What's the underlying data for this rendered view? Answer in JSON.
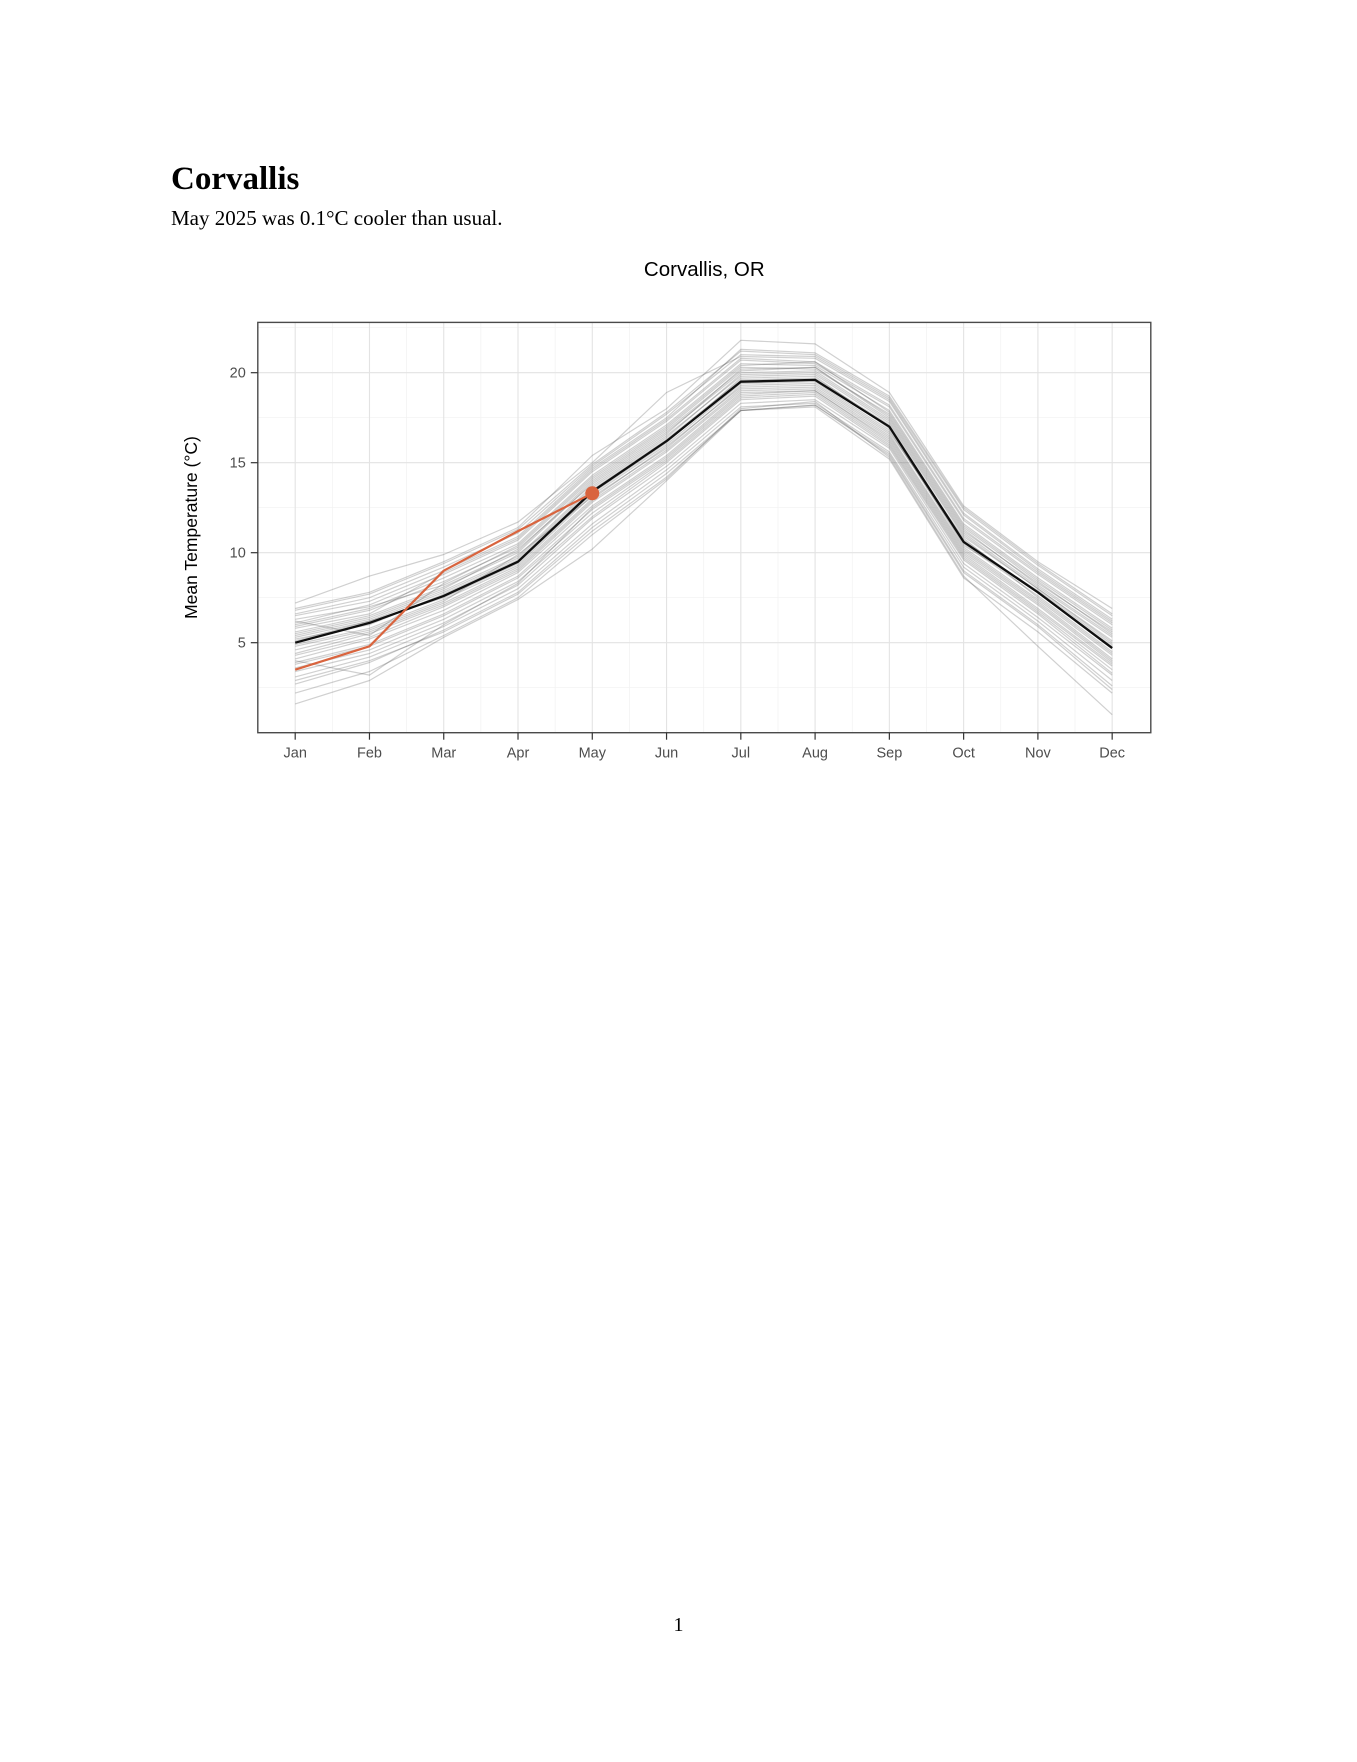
{
  "page": {
    "heading": "Corvallis",
    "subtitle": "May 2025 was 0.1°C cooler than usual.",
    "page_number": "1"
  },
  "chart": {
    "title": "Corvallis, OR",
    "y_axis_label": "Mean Temperature (°C)",
    "colors": {
      "current_year_line": "#D9643E",
      "current_year_point": "#D9643E",
      "mean_line": "#0f0f0f",
      "history_line": "#3c3c3c",
      "history_opacity": 0.24,
      "grid_major": "#e3e3e3",
      "grid_minor": "#f1f1f1",
      "panel_border": "#4a4a4a",
      "tick_mark": "#333333",
      "tick_label": "#4d4d4d",
      "title_text": "#000000"
    }
  },
  "chart_data": {
    "type": "line",
    "title": "Corvallis, OR",
    "xlabel": "",
    "ylabel": "Mean Temperature (°C)",
    "categories": [
      "Jan",
      "Feb",
      "Mar",
      "Apr",
      "May",
      "Jun",
      "Jul",
      "Aug",
      "Sep",
      "Oct",
      "Nov",
      "Dec"
    ],
    "y_ticks": [
      5,
      10,
      15,
      20
    ],
    "ylim": [
      0,
      22.8
    ],
    "grid": "on",
    "legend": "none",
    "series": [
      {
        "name": "historical-mean",
        "role": "mean",
        "values": [
          5.0,
          6.1,
          7.6,
          9.5,
          13.4,
          16.2,
          19.5,
          19.6,
          17.0,
          10.6,
          7.8,
          4.7
        ]
      },
      {
        "name": "2025",
        "role": "current",
        "note": "ends at May with a point marker",
        "values": [
          3.5,
          4.8,
          9.0,
          11.2,
          13.3
        ]
      }
    ],
    "history_years": [
      [
        6.3,
        7.0,
        8.2,
        10.1,
        14.0,
        16.8,
        20.1,
        20.3,
        17.5,
        11.2,
        8.3,
        5.6
      ],
      [
        4.1,
        5.2,
        6.8,
        8.9,
        12.6,
        15.4,
        18.9,
        19.0,
        16.3,
        10.0,
        7.1,
        3.9
      ],
      [
        5.8,
        6.6,
        8.9,
        10.8,
        14.6,
        17.4,
        20.8,
        20.6,
        18.2,
        11.9,
        8.9,
        6.1
      ],
      [
        3.4,
        4.4,
        6.1,
        8.2,
        11.9,
        14.8,
        18.3,
        18.5,
        15.8,
        9.4,
        6.4,
        3.2
      ],
      [
        6.8,
        7.7,
        9.4,
        11.3,
        14.9,
        17.8,
        21.2,
        21.0,
        18.6,
        12.4,
        9.3,
        6.5
      ],
      [
        2.7,
        3.9,
        5.7,
        7.8,
        11.4,
        14.4,
        17.9,
        18.2,
        15.5,
        9.0,
        6.0,
        2.6
      ],
      [
        5.4,
        6.3,
        7.9,
        9.8,
        13.7,
        16.5,
        19.8,
        19.9,
        17.2,
        10.9,
        8.0,
        5.0
      ],
      [
        4.6,
        5.6,
        7.2,
        9.2,
        13.0,
        15.9,
        19.2,
        19.3,
        16.6,
        10.3,
        7.4,
        4.3
      ],
      [
        6.0,
        6.9,
        8.6,
        10.5,
        14.3,
        17.1,
        20.5,
        20.4,
        17.9,
        11.6,
        8.6,
        5.8
      ],
      [
        3.8,
        4.8,
        6.5,
        8.6,
        12.2,
        15.1,
        18.6,
        18.8,
        16.0,
        9.7,
        6.7,
        3.5
      ],
      [
        5.2,
        6.0,
        7.7,
        9.6,
        13.5,
        16.3,
        19.6,
        19.7,
        17.1,
        10.7,
        7.8,
        4.8
      ],
      [
        7.2,
        8.7,
        9.9,
        11.7,
        15.0,
        18.9,
        20.9,
        20.8,
        18.4,
        12.1,
        9.0,
        6.2
      ],
      [
        1.6,
        2.9,
        5.3,
        7.4,
        10.2,
        14.0,
        17.9,
        18.1,
        15.2,
        8.6,
        5.6,
        2.2
      ],
      [
        4.9,
        5.8,
        7.4,
        9.3,
        13.2,
        16.0,
        19.4,
        19.5,
        16.8,
        10.5,
        7.6,
        4.5
      ],
      [
        5.6,
        6.5,
        8.1,
        10.0,
        13.9,
        16.7,
        20.0,
        20.1,
        17.4,
        11.1,
        8.1,
        5.3
      ],
      [
        4.3,
        5.3,
        7.0,
        9.0,
        12.8,
        15.6,
        19.0,
        19.1,
        16.4,
        10.1,
        7.2,
        4.0
      ],
      [
        6.5,
        7.3,
        9.0,
        10.9,
        14.7,
        17.5,
        21.3,
        21.1,
        18.7,
        12.5,
        9.4,
        6.6
      ],
      [
        3.1,
        4.2,
        5.9,
        8.0,
        11.6,
        14.6,
        18.1,
        18.3,
        15.6,
        9.2,
        6.2,
        2.9
      ],
      [
        5.1,
        6.2,
        7.5,
        9.4,
        13.3,
        16.1,
        19.7,
        19.8,
        16.9,
        10.4,
        7.9,
        4.9
      ],
      [
        6.1,
        7.1,
        8.8,
        10.7,
        14.5,
        17.3,
        20.7,
        20.5,
        18.1,
        11.8,
        8.8,
        6.0
      ],
      [
        3.6,
        4.6,
        6.3,
        8.4,
        12.0,
        15.0,
        18.5,
        18.7,
        15.9,
        9.6,
        6.6,
        3.3
      ],
      [
        5.9,
        6.8,
        8.4,
        10.3,
        14.1,
        16.9,
        20.3,
        20.2,
        17.7,
        11.4,
        8.4,
        5.5
      ],
      [
        4.4,
        5.5,
        7.1,
        9.1,
        12.9,
        15.7,
        19.1,
        19.2,
        16.5,
        10.2,
        7.3,
        4.1
      ],
      [
        6.6,
        7.5,
        9.2,
        11.1,
        14.8,
        17.7,
        21.0,
        20.9,
        18.5,
        12.2,
        9.1,
        6.3
      ],
      [
        2.9,
        4.0,
        5.6,
        7.7,
        11.2,
        14.2,
        17.9,
        18.2,
        15.4,
        8.9,
        5.9,
        2.4
      ],
      [
        5.3,
        6.2,
        7.8,
        9.7,
        13.6,
        16.4,
        19.9,
        20.0,
        17.3,
        11.0,
        8.0,
        5.1
      ],
      [
        4.8,
        5.7,
        7.3,
        9.9,
        13.1,
        15.8,
        19.3,
        19.4,
        16.7,
        10.8,
        7.5,
        4.4
      ],
      [
        6.9,
        7.8,
        9.5,
        11.4,
        15.4,
        18.0,
        21.8,
        21.6,
        18.9,
        12.6,
        9.5,
        6.9
      ],
      [
        3.9,
        4.9,
        6.6,
        8.7,
        12.4,
        15.2,
        18.7,
        18.9,
        16.1,
        9.8,
        6.8,
        3.7
      ],
      [
        5.5,
        6.4,
        8.0,
        10.2,
        13.8,
        16.6,
        20.2,
        20.3,
        17.6,
        11.3,
        8.2,
        5.4
      ],
      [
        2.2,
        3.4,
        5.4,
        7.5,
        11.0,
        14.1,
        18.0,
        18.4,
        15.3,
        8.7,
        4.8,
        1.0
      ],
      [
        4.0,
        3.2,
        6.0,
        8.3,
        12.5,
        15.3,
        18.8,
        19.0,
        16.2,
        9.9,
        6.9,
        3.8
      ],
      [
        6.2,
        5.4,
        8.3,
        10.4,
        14.2,
        17.0,
        20.4,
        20.6,
        17.8,
        11.5,
        8.5,
        5.7
      ]
    ]
  }
}
